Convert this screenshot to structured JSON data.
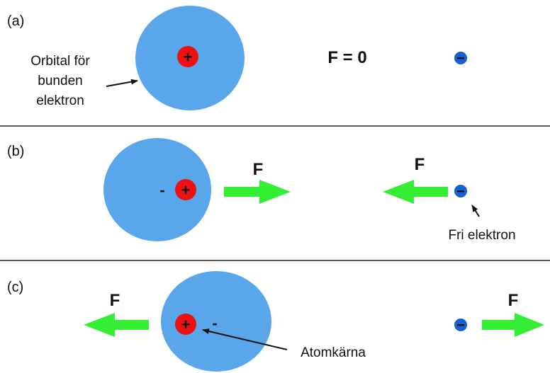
{
  "colors": {
    "orbital": "#5aa6ea",
    "nucleus": "#ee1111",
    "electron": "#1560d4",
    "arrow": "#33ee33",
    "divider": "#222222",
    "pointer": "#111111"
  },
  "panels": [
    {
      "label": "(a)",
      "force_text": "F = 0",
      "orbital_caption": [
        "Orbital för",
        "bunden",
        "elektron"
      ]
    },
    {
      "label": "(b)",
      "force_left": "F",
      "force_right": "F",
      "electron_caption": "Fri elektron",
      "induced_charge": "-"
    },
    {
      "label": "(c)",
      "force_left": "F",
      "force_right": "F",
      "nucleus_caption": "Atomkärna",
      "induced_charge": "-"
    }
  ],
  "symbols": {
    "plus": "+",
    "minus": "-"
  }
}
